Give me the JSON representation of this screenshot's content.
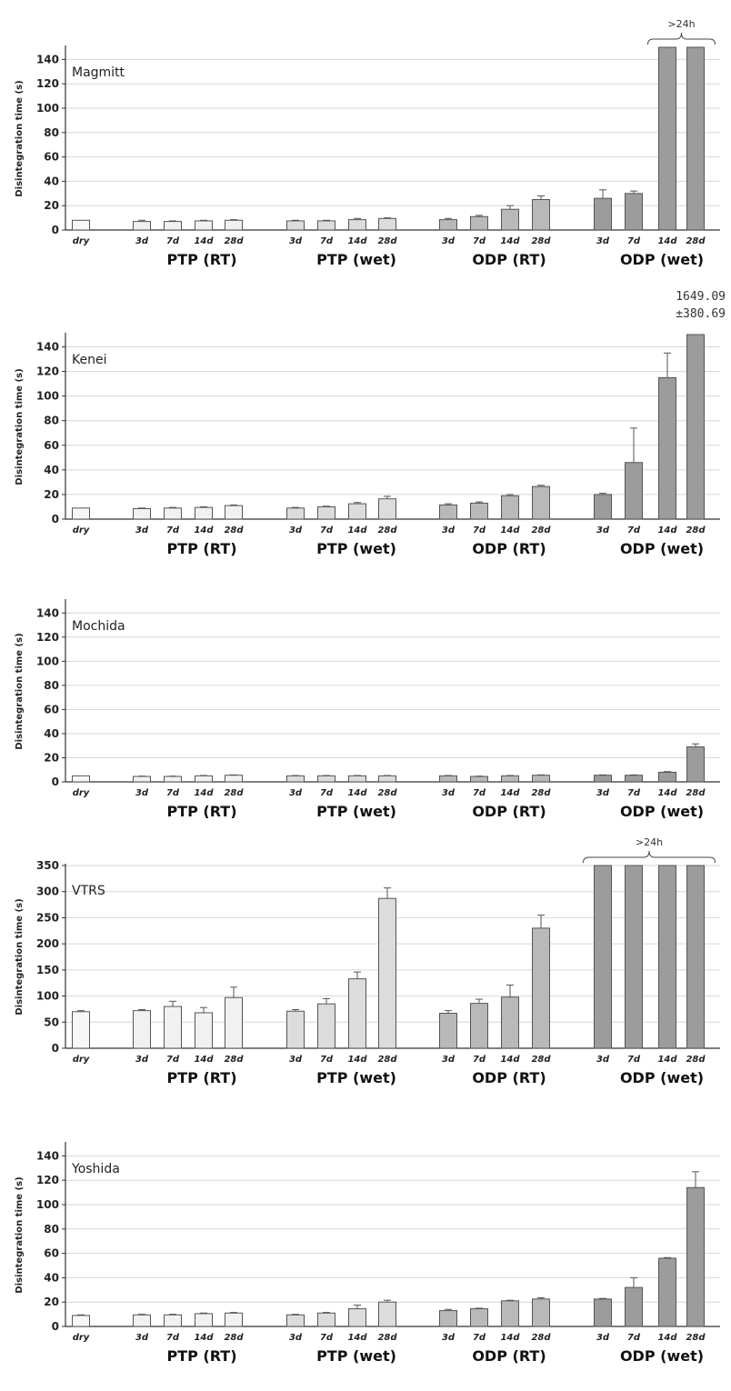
{
  "chart_data": [
    {
      "type": "bar",
      "panel_label": "Magmitt",
      "ylabel": "Disintegration time (s)",
      "ylim": [
        0,
        150
      ],
      "yticks": [
        0,
        20,
        40,
        60,
        80,
        100,
        120,
        140
      ],
      "grid": true,
      "x_tick_labels": [
        "dry",
        "3d",
        "7d",
        "14d",
        "28d",
        "3d",
        "7d",
        "14d",
        "28d",
        "3d",
        "7d",
        "14d",
        "28d",
        "3d",
        "7d",
        "14d",
        "28d"
      ],
      "group_labels": [
        "PTP (RT)",
        "PTP (wet)",
        "ODP (RT)",
        "ODP (wet)"
      ],
      "values": [
        8,
        7,
        7,
        7.5,
        8,
        7.5,
        7.5,
        8.5,
        9.5,
        8.5,
        11,
        17,
        25,
        26,
        30,
        150,
        150
      ],
      "errors": [
        0,
        1,
        0.5,
        0.5,
        0.5,
        0.5,
        0.5,
        1,
        0.5,
        1,
        1,
        3,
        3,
        7,
        2,
        0,
        0
      ],
      "annotations": [
        {
          "text": ">24h",
          "bracket_start_bar": 15,
          "bracket_end_bar": 16
        }
      ],
      "colors": [
        "#f7f7f7",
        "#f1f1f1",
        "#f1f1f1",
        "#f1f1f1",
        "#f1f1f1",
        "#dcdcdc",
        "#dcdcdc",
        "#dcdcdc",
        "#dcdcdc",
        "#b9b9b9",
        "#b9b9b9",
        "#b9b9b9",
        "#b9b9b9",
        "#9c9c9c",
        "#9c9c9c",
        "#9c9c9c",
        "#9c9c9c"
      ]
    },
    {
      "type": "bar",
      "panel_label": "Kenei",
      "ylabel": "Disintegration time (s)",
      "ylim": [
        0,
        150
      ],
      "yticks": [
        0,
        20,
        40,
        60,
        80,
        100,
        120,
        140
      ],
      "grid": true,
      "x_tick_labels": [
        "dry",
        "3d",
        "7d",
        "14d",
        "28d",
        "3d",
        "7d",
        "14d",
        "28d",
        "3d",
        "7d",
        "14d",
        "28d",
        "3d",
        "7d",
        "14d",
        "28d"
      ],
      "group_labels": [
        "PTP (RT)",
        "PTP (wet)",
        "ODP (RT)",
        "ODP (wet)"
      ],
      "values": [
        9,
        8.5,
        9,
        9.5,
        11,
        9,
        10,
        12.5,
        16.5,
        11.5,
        13,
        19,
        26.5,
        20,
        46,
        115,
        150
      ],
      "errors": [
        0,
        0.5,
        0.5,
        0.5,
        0.5,
        0.5,
        0.5,
        1,
        2,
        1,
        1,
        1,
        1,
        1,
        28,
        20,
        0
      ],
      "annotations": [
        {
          "text_lines": [
            "1649.09",
            "±380.69"
          ],
          "bar": 16
        }
      ],
      "colors": [
        "#f7f7f7",
        "#f1f1f1",
        "#f1f1f1",
        "#f1f1f1",
        "#f1f1f1",
        "#dcdcdc",
        "#dcdcdc",
        "#dcdcdc",
        "#dcdcdc",
        "#b9b9b9",
        "#b9b9b9",
        "#b9b9b9",
        "#b9b9b9",
        "#9c9c9c",
        "#9c9c9c",
        "#9c9c9c",
        "#9c9c9c"
      ]
    },
    {
      "type": "bar",
      "panel_label": "Mochida",
      "ylabel": "Disintegration time (s)",
      "ylim": [
        0,
        150
      ],
      "yticks": [
        0,
        20,
        40,
        60,
        80,
        100,
        120,
        140
      ],
      "grid": true,
      "x_tick_labels": [
        "dry",
        "3d",
        "7d",
        "14d",
        "28d",
        "3d",
        "7d",
        "14d",
        "28d",
        "3d",
        "7d",
        "14d",
        "28d",
        "3d",
        "7d",
        "14d",
        "28d"
      ],
      "group_labels": [
        "PTP (RT)",
        "PTP (wet)",
        "ODP (RT)",
        "ODP (wet)"
      ],
      "values": [
        5,
        4.5,
        4.5,
        5,
        5.5,
        5,
        5,
        5,
        5,
        5,
        4.5,
        5,
        5.5,
        5.5,
        5.5,
        8,
        29
      ],
      "errors": [
        0,
        0.3,
        0.3,
        0.3,
        0.3,
        0.3,
        0.3,
        0.3,
        0.3,
        0.3,
        0.3,
        0.3,
        0.3,
        0.3,
        0.3,
        0.5,
        2.5
      ],
      "annotations": [],
      "colors": [
        "#f7f7f7",
        "#f1f1f1",
        "#f1f1f1",
        "#f1f1f1",
        "#f1f1f1",
        "#dcdcdc",
        "#dcdcdc",
        "#dcdcdc",
        "#dcdcdc",
        "#b9b9b9",
        "#b9b9b9",
        "#b9b9b9",
        "#b9b9b9",
        "#9c9c9c",
        "#9c9c9c",
        "#9c9c9c",
        "#9c9c9c"
      ]
    },
    {
      "type": "bar",
      "panel_label": "VTRS",
      "ylabel": "Disintegration time (s)",
      "ylim": [
        0,
        350
      ],
      "yticks": [
        0,
        50,
        100,
        150,
        200,
        250,
        300,
        350
      ],
      "grid": true,
      "x_tick_labels": [
        "dry",
        "3d",
        "7d",
        "14d",
        "28d",
        "3d",
        "7d",
        "14d",
        "28d",
        "3d",
        "7d",
        "14d",
        "28d",
        "3d",
        "7d",
        "14d",
        "28d"
      ],
      "group_labels": [
        "PTP (RT)",
        "PTP (wet)",
        "ODP (RT)",
        "ODP (wet)"
      ],
      "values": [
        70,
        72,
        80,
        68,
        97,
        71,
        85,
        133,
        287,
        67,
        86,
        98,
        230,
        350,
        350,
        350,
        350
      ],
      "errors": [
        2,
        2,
        10,
        10,
        20,
        3,
        10,
        13,
        20,
        5,
        8,
        23,
        25,
        0,
        0,
        0,
        0
      ],
      "annotations": [
        {
          "text": ">24h",
          "bracket_start_bar": 13,
          "bracket_end_bar": 16
        }
      ],
      "colors": [
        "#f7f7f7",
        "#f1f1f1",
        "#f1f1f1",
        "#f1f1f1",
        "#f1f1f1",
        "#dcdcdc",
        "#dcdcdc",
        "#dcdcdc",
        "#dcdcdc",
        "#b9b9b9",
        "#b9b9b9",
        "#b9b9b9",
        "#b9b9b9",
        "#9c9c9c",
        "#9c9c9c",
        "#9c9c9c",
        "#9c9c9c"
      ]
    },
    {
      "type": "bar",
      "panel_label": "Yoshida",
      "ylabel": "Disintegration time (s)",
      "ylim": [
        0,
        150
      ],
      "yticks": [
        0,
        20,
        40,
        60,
        80,
        100,
        120,
        140
      ],
      "grid": true,
      "x_tick_labels": [
        "dry",
        "3d",
        "7d",
        "14d",
        "28d",
        "3d",
        "7d",
        "14d",
        "28d",
        "3d",
        "7d",
        "14d",
        "28d",
        "3d",
        "7d",
        "14d",
        "28d"
      ],
      "group_labels": [
        "PTP (RT)",
        "PTP (wet)",
        "ODP (RT)",
        "ODP (wet)"
      ],
      "values": [
        9,
        9.5,
        9.5,
        10.5,
        11,
        9.5,
        11,
        14.5,
        20,
        13,
        14.5,
        21,
        22.5,
        22.5,
        32,
        56,
        114
      ],
      "errors": [
        0.5,
        0.5,
        0.5,
        0.5,
        0.5,
        0.5,
        0.5,
        3,
        1.5,
        1,
        0.5,
        0.5,
        1,
        0.5,
        8,
        0.5,
        13
      ],
      "annotations": [],
      "colors": [
        "#f7f7f7",
        "#f1f1f1",
        "#f1f1f1",
        "#f1f1f1",
        "#f1f1f1",
        "#dcdcdc",
        "#dcdcdc",
        "#dcdcdc",
        "#dcdcdc",
        "#b9b9b9",
        "#b9b9b9",
        "#b9b9b9",
        "#b9b9b9",
        "#9c9c9c",
        "#9c9c9c",
        "#9c9c9c",
        "#9c9c9c"
      ]
    }
  ]
}
